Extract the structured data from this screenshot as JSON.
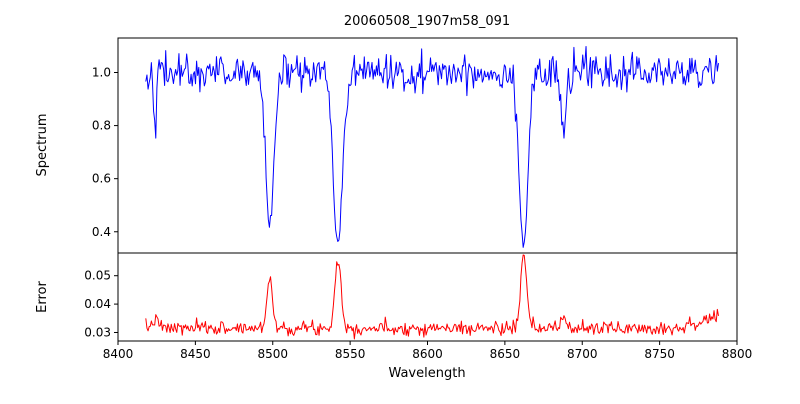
{
  "chart_data": {
    "type": "line",
    "title": "20060508_1907m58_091",
    "xlabel": "Wavelength",
    "x_range": [
      8400,
      8800
    ],
    "x_ticks": [
      8400,
      8450,
      8500,
      8550,
      8600,
      8650,
      8700,
      8750,
      8800
    ],
    "x_tick_labels": [
      "8400",
      "8450",
      "8500",
      "8550",
      "8600",
      "8650",
      "8700",
      "8750",
      "8800"
    ],
    "grid": false,
    "legend": "none",
    "subplots": [
      {
        "ylabel": "Spectrum",
        "ylim": [
          0.32,
          1.13
        ],
        "y_ticks": [
          0.4,
          0.6,
          0.8,
          1.0
        ],
        "y_tick_labels": [
          "0.4",
          "0.6",
          "0.8",
          "1.0"
        ],
        "color": "#0000ff",
        "series": {
          "name": "spectrum",
          "x_start": 8418,
          "x_end": 8788,
          "n_points": 520,
          "baseline": 1.0,
          "noise_sigma": 0.034,
          "noise_mode": "multiplicative",
          "seed": 42,
          "features": [
            {
              "center": 8424.0,
              "amplitude": -0.17,
              "width": 0.9
            },
            {
              "center": 8498.0,
              "amplitude": -0.58,
              "width": 2.6
            },
            {
              "center": 8542.1,
              "amplitude": -0.655,
              "width": 3.0
            },
            {
              "center": 8662.1,
              "amplitude": -0.65,
              "width": 2.8
            },
            {
              "center": 8688.0,
              "amplitude": -0.25,
              "width": 1.6
            }
          ]
        }
      },
      {
        "ylabel": "Error",
        "ylim": [
          0.027,
          0.058
        ],
        "y_ticks": [
          0.03,
          0.04,
          0.05
        ],
        "y_tick_labels": [
          "0.03",
          "0.04",
          "0.05"
        ],
        "color": "#ff0000",
        "series": {
          "name": "error",
          "x_start": 8418,
          "x_end": 8788,
          "n_points": 520,
          "baseline": 0.0315,
          "noise_sigma": 0.0012,
          "noise_mode": "additive",
          "seed": 7,
          "features": [
            {
              "center": 8424.0,
              "amplitude": 0.003,
              "width": 2.0
            },
            {
              "center": 8498.0,
              "amplitude": 0.018,
              "width": 1.8
            },
            {
              "center": 8542.1,
              "amplitude": 0.0245,
              "width": 2.0
            },
            {
              "center": 8662.1,
              "amplitude": 0.0255,
              "width": 1.9
            },
            {
              "center": 8688.0,
              "amplitude": 0.004,
              "width": 1.6
            },
            {
              "center": 8789.0,
              "amplitude": 0.004,
              "width": 12.0
            }
          ]
        }
      }
    ]
  }
}
